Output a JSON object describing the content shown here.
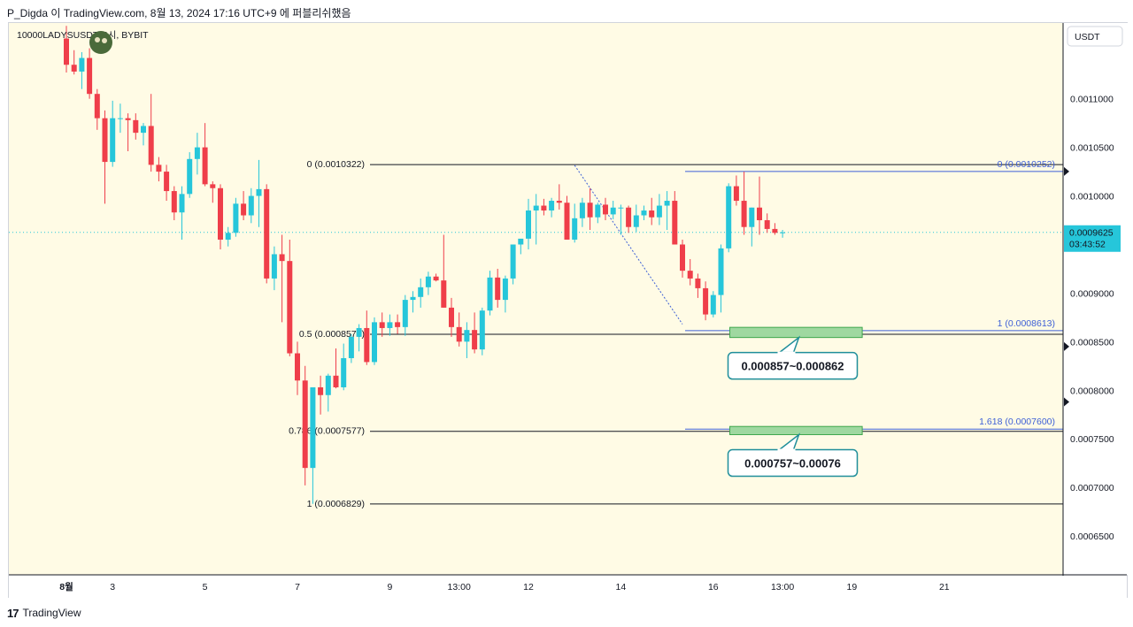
{
  "caption": "P_Digda 이 TradingView.com, 8월 13, 2024 17:16 UTC+9 에 퍼블리쉬했음",
  "symbol_label": "10000LADYSUSDT, 4시, BYBIT",
  "footer": {
    "logo_mark": "17",
    "brand": "TradingView"
  },
  "colors": {
    "background": "#fffbe5",
    "bull": "#26c6da",
    "bear": "#ef3e4a",
    "fib_blue": "#3d5fd6",
    "zone_fill": "#9fd8a0",
    "zone_border": "#3fa74d",
    "callout_border": "#1f8e9a",
    "price_badge": "#26c6da"
  },
  "chart_data": {
    "type": "candlestick",
    "timeframe": "4H",
    "y_axis": {
      "unit_label": "USDT",
      "ylim": [
        0.00061,
        0.001178
      ],
      "ticks": [
        {
          "value": 0.0011,
          "label": "0.0011000"
        },
        {
          "value": 0.00105,
          "label": "0.0010500"
        },
        {
          "value": 0.001,
          "label": "0.0010000"
        },
        {
          "value": 0.0009,
          "label": "0.0009000"
        },
        {
          "value": 0.00085,
          "label": "0.0008500"
        },
        {
          "value": 0.0008,
          "label": "0.0008000"
        },
        {
          "value": 0.00075,
          "label": "0.0007500"
        },
        {
          "value": 0.0007,
          "label": "0.0007000"
        },
        {
          "value": 0.00065,
          "label": "0.0006500"
        }
      ]
    },
    "x_axis": {
      "ticks": [
        {
          "index": 0,
          "label": "8월",
          "bold": true
        },
        {
          "index": 6,
          "label": "3"
        },
        {
          "index": 18,
          "label": "5"
        },
        {
          "index": 30,
          "label": "7"
        },
        {
          "index": 42,
          "label": "9"
        },
        {
          "index": 51,
          "label": "13:00"
        },
        {
          "index": 60,
          "label": "12"
        },
        {
          "index": 72,
          "label": "14"
        },
        {
          "index": 84,
          "label": "16"
        },
        {
          "index": 93,
          "label": "13:00"
        },
        {
          "index": 102,
          "label": "19"
        },
        {
          "index": 114,
          "label": "21"
        }
      ]
    },
    "last_price": {
      "label": "0.0009625",
      "countdown": "03:43:52",
      "value": 0.0009625
    },
    "candles": [
      {
        "o": 0.001162,
        "h": 0.001175,
        "l": 0.001127,
        "c": 0.001135
      },
      {
        "o": 0.001135,
        "h": 0.00115,
        "l": 0.001125,
        "c": 0.001128
      },
      {
        "o": 0.001128,
        "h": 0.001148,
        "l": 0.00111,
        "c": 0.001142
      },
      {
        "o": 0.001142,
        "h": 0.001152,
        "l": 0.0011,
        "c": 0.001105
      },
      {
        "o": 0.001105,
        "h": 0.00111,
        "l": 0.001068,
        "c": 0.00108
      },
      {
        "o": 0.00108,
        "h": 0.001088,
        "l": 0.000992,
        "c": 0.001035
      },
      {
        "o": 0.001035,
        "h": 0.001098,
        "l": 0.00103,
        "c": 0.00108
      },
      {
        "o": 0.00108,
        "h": 0.001095,
        "l": 0.001065,
        "c": 0.00108
      },
      {
        "o": 0.00108,
        "h": 0.001085,
        "l": 0.001046,
        "c": 0.001078
      },
      {
        "o": 0.001078,
        "h": 0.001085,
        "l": 0.001058,
        "c": 0.001065
      },
      {
        "o": 0.001065,
        "h": 0.001075,
        "l": 0.001052,
        "c": 0.001072
      },
      {
        "o": 0.001072,
        "h": 0.001105,
        "l": 0.001025,
        "c": 0.001032
      },
      {
        "o": 0.001032,
        "h": 0.00104,
        "l": 0.001015,
        "c": 0.001025
      },
      {
        "o": 0.001025,
        "h": 0.001032,
        "l": 0.000995,
        "c": 0.001005
      },
      {
        "o": 0.001005,
        "h": 0.00101,
        "l": 0.000975,
        "c": 0.000983
      },
      {
        "o": 0.000983,
        "h": 0.00101,
        "l": 0.000955,
        "c": 0.001002
      },
      {
        "o": 0.001002,
        "h": 0.001045,
        "l": 0.000998,
        "c": 0.001038
      },
      {
        "o": 0.001038,
        "h": 0.001065,
        "l": 0.001022,
        "c": 0.00105
      },
      {
        "o": 0.00105,
        "h": 0.001075,
        "l": 0.00101,
        "c": 0.001012
      },
      {
        "o": 0.001012,
        "h": 0.001015,
        "l": 0.000993,
        "c": 0.001008
      },
      {
        "o": 0.001008,
        "h": 0.001012,
        "l": 0.000945,
        "c": 0.000955
      },
      {
        "o": 0.000955,
        "h": 0.000968,
        "l": 0.000948,
        "c": 0.000962
      },
      {
        "o": 0.000962,
        "h": 0.000998,
        "l": 0.000958,
        "c": 0.000992
      },
      {
        "o": 0.000992,
        "h": 0.001005,
        "l": 0.000975,
        "c": 0.00098
      },
      {
        "o": 0.00098,
        "h": 0.001008,
        "l": 0.000972,
        "c": 0.001
      },
      {
        "o": 0.001,
        "h": 0.001037,
        "l": 0.000968,
        "c": 0.001007
      },
      {
        "o": 0.001007,
        "h": 0.001012,
        "l": 0.00091,
        "c": 0.000915
      },
      {
        "o": 0.000915,
        "h": 0.000948,
        "l": 0.000903,
        "c": 0.00094
      },
      {
        "o": 0.00094,
        "h": 0.00096,
        "l": 0.00087,
        "c": 0.000933
      },
      {
        "o": 0.000933,
        "h": 0.000955,
        "l": 0.000835,
        "c": 0.000838
      },
      {
        "o": 0.000838,
        "h": 0.00085,
        "l": 0.000795,
        "c": 0.00081
      },
      {
        "o": 0.00081,
        "h": 0.000825,
        "l": 0.000702,
        "c": 0.00072
      },
      {
        "o": 0.00072,
        "h": 0.000802,
        "l": 0.000683,
        "c": 0.000803
      },
      {
        "o": 0.000803,
        "h": 0.000815,
        "l": 0.000775,
        "c": 0.000795
      },
      {
        "o": 0.000795,
        "h": 0.000817,
        "l": 0.000778,
        "c": 0.000815
      },
      {
        "o": 0.000815,
        "h": 0.000843,
        "l": 0.000802,
        "c": 0.000803
      },
      {
        "o": 0.000803,
        "h": 0.000848,
        "l": 0.0008,
        "c": 0.000833
      },
      {
        "o": 0.000833,
        "h": 0.000858,
        "l": 0.000828,
        "c": 0.000855
      },
      {
        "o": 0.000855,
        "h": 0.000868,
        "l": 0.00084,
        "c": 0.000864
      },
      {
        "o": 0.000864,
        "h": 0.000882,
        "l": 0.000826,
        "c": 0.000829
      },
      {
        "o": 0.000829,
        "h": 0.000875,
        "l": 0.000826,
        "c": 0.00087
      },
      {
        "o": 0.00087,
        "h": 0.00088,
        "l": 0.000855,
        "c": 0.000864
      },
      {
        "o": 0.000864,
        "h": 0.000878,
        "l": 0.000856,
        "c": 0.00087
      },
      {
        "o": 0.00087,
        "h": 0.000878,
        "l": 0.000858,
        "c": 0.000865
      },
      {
        "o": 0.000865,
        "h": 0.000898,
        "l": 0.000856,
        "c": 0.000893
      },
      {
        "o": 0.000893,
        "h": 0.000902,
        "l": 0.00088,
        "c": 0.000896
      },
      {
        "o": 0.000896,
        "h": 0.000915,
        "l": 0.000885,
        "c": 0.000906
      },
      {
        "o": 0.000906,
        "h": 0.000922,
        "l": 0.000898,
        "c": 0.000917
      },
      {
        "o": 0.000917,
        "h": 0.00092,
        "l": 0.000912,
        "c": 0.000913
      },
      {
        "o": 0.000913,
        "h": 0.00096,
        "l": 0.000885,
        "c": 0.000885
      },
      {
        "o": 0.000885,
        "h": 0.000895,
        "l": 0.000855,
        "c": 0.000865
      },
      {
        "o": 0.000865,
        "h": 0.00088,
        "l": 0.000845,
        "c": 0.00085
      },
      {
        "o": 0.00085,
        "h": 0.00087,
        "l": 0.000833,
        "c": 0.000862
      },
      {
        "o": 0.000862,
        "h": 0.00088,
        "l": 0.000838,
        "c": 0.000842
      },
      {
        "o": 0.000842,
        "h": 0.000885,
        "l": 0.000836,
        "c": 0.000882
      },
      {
        "o": 0.000882,
        "h": 0.000923,
        "l": 0.000877,
        "c": 0.000916
      },
      {
        "o": 0.000916,
        "h": 0.000925,
        "l": 0.000885,
        "c": 0.000893
      },
      {
        "o": 0.000893,
        "h": 0.000918,
        "l": 0.00088,
        "c": 0.000915
      },
      {
        "o": 0.000915,
        "h": 0.00095,
        "l": 0.000909,
        "c": 0.00095
      },
      {
        "o": 0.00095,
        "h": 0.000955,
        "l": 0.00094,
        "c": 0.000956
      },
      {
        "o": 0.000956,
        "h": 0.000997,
        "l": 0.000945,
        "c": 0.000985
      },
      {
        "o": 0.000985,
        "h": 0.001002,
        "l": 0.00095,
        "c": 0.00099
      },
      {
        "o": 0.00099,
        "h": 0.000997,
        "l": 0.00098,
        "c": 0.000985
      },
      {
        "o": 0.000985,
        "h": 0.000998,
        "l": 0.000978,
        "c": 0.000995
      },
      {
        "o": 0.000995,
        "h": 0.001012,
        "l": 0.000986,
        "c": 0.000993
      },
      {
        "o": 0.000993,
        "h": 0.001,
        "l": 0.000955,
        "c": 0.000955
      },
      {
        "o": 0.000955,
        "h": 0.000992,
        "l": 0.000952,
        "c": 0.000977
      },
      {
        "o": 0.000977,
        "h": 0.000998,
        "l": 0.000968,
        "c": 0.000993
      },
      {
        "o": 0.000993,
        "h": 0.001008,
        "l": 0.000965,
        "c": 0.000978
      },
      {
        "o": 0.000978,
        "h": 0.000993,
        "l": 0.000972,
        "c": 0.000991
      },
      {
        "o": 0.000991,
        "h": 0.000998,
        "l": 0.000975,
        "c": 0.000981
      },
      {
        "o": 0.000981,
        "h": 0.000995,
        "l": 0.000976,
        "c": 0.000988
      },
      {
        "o": 0.000988,
        "h": 0.000991,
        "l": 0.00096,
        "c": 0.000988
      },
      {
        "o": 0.000988,
        "h": 0.00099,
        "l": 0.000962,
        "c": 0.000968
      },
      {
        "o": 0.000968,
        "h": 0.000991,
        "l": 0.000963,
        "c": 0.00098
      },
      {
        "o": 0.00098,
        "h": 0.00099,
        "l": 0.000975,
        "c": 0.000985
      },
      {
        "o": 0.000985,
        "h": 0.000998,
        "l": 0.00097,
        "c": 0.000978
      },
      {
        "o": 0.000978,
        "h": 0.001002,
        "l": 0.00097,
        "c": 0.00099
      },
      {
        "o": 0.00099,
        "h": 0.001005,
        "l": 0.000965,
        "c": 0.000995
      },
      {
        "o": 0.000995,
        "h": 0.001005,
        "l": 0.00095,
        "c": 0.00095
      },
      {
        "o": 0.00095,
        "h": 0.000955,
        "l": 0.000916,
        "c": 0.000923
      },
      {
        "o": 0.000923,
        "h": 0.000935,
        "l": 0.000908,
        "c": 0.000915
      },
      {
        "o": 0.000915,
        "h": 0.00092,
        "l": 0.000895,
        "c": 0.000905
      },
      {
        "o": 0.000905,
        "h": 0.000912,
        "l": 0.000872,
        "c": 0.000878
      },
      {
        "o": 0.000878,
        "h": 0.000902,
        "l": 0.000875,
        "c": 0.000898
      },
      {
        "o": 0.000898,
        "h": 0.00095,
        "l": 0.00088,
        "c": 0.000946
      },
      {
        "o": 0.000946,
        "h": 0.001013,
        "l": 0.000942,
        "c": 0.00101
      },
      {
        "o": 0.00101,
        "h": 0.001021,
        "l": 0.00099,
        "c": 0.000995
      },
      {
        "o": 0.000995,
        "h": 0.001025,
        "l": 0.00096,
        "c": 0.000968
      },
      {
        "o": 0.000968,
        "h": 0.000988,
        "l": 0.000948,
        "c": 0.000988
      },
      {
        "o": 0.000988,
        "h": 0.00102,
        "l": 0.00096,
        "c": 0.000975
      },
      {
        "o": 0.000975,
        "h": 0.000982,
        "l": 0.000962,
        "c": 0.000966
      },
      {
        "o": 0.000966,
        "h": 0.000972,
        "l": 0.00096,
        "c": 0.000962
      },
      {
        "o": 0.000962,
        "h": 0.000965,
        "l": 0.000957,
        "c": 0.0009625
      }
    ],
    "fib_black": {
      "start_index": 40,
      "levels": [
        {
          "value": 0.0010322,
          "label": "0 (0.0010322)"
        },
        {
          "value": 0.0008576,
          "label": "0.5 (0.0008576)"
        },
        {
          "value": 0.0007577,
          "label": "0.786 (0.0007577)"
        },
        {
          "value": 0.0006829,
          "label": "1 (0.0006829)"
        }
      ]
    },
    "fib_blue": {
      "start_index": 80,
      "levels": [
        {
          "value": 0.0010252,
          "label": "0 (0.0010252)"
        },
        {
          "value": 0.0008613,
          "label": "1 (0.0008613)"
        },
        {
          "value": 0.00076,
          "label": "1.618 (0.0007600)"
        }
      ]
    },
    "dotted_path": [
      {
        "index": 66,
        "value": 0.0010315
      },
      {
        "index": 80,
        "value": 0.000868
      }
    ],
    "zones": [
      {
        "from_index": 85,
        "to_index": 103,
        "low": 0.000857,
        "high": 0.000862,
        "label": "0.000857~0.000862"
      },
      {
        "from_index": 85,
        "to_index": 103,
        "low": 0.000757,
        "high": 0.00076,
        "label": "0.000757~0.00076"
      }
    ]
  }
}
